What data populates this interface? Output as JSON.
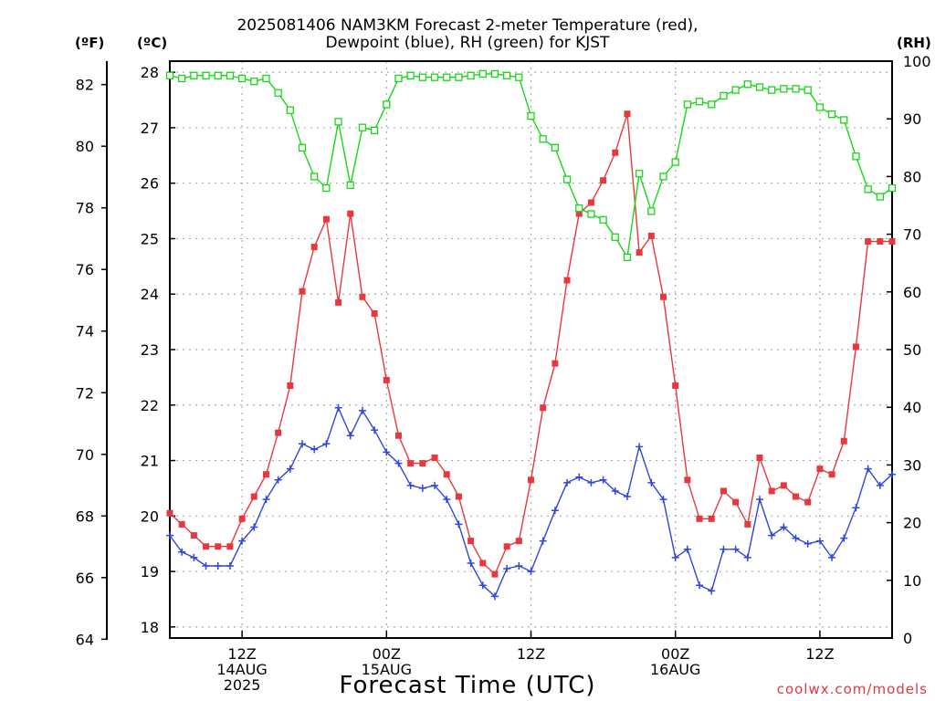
{
  "title": {
    "line1": "2025081406 NAM3KM Forecast 2-meter Temperature (red),",
    "line2": "Dewpoint (blue), RH (green) for KJST"
  },
  "units": {
    "f": "(ºF)",
    "c": "(ºC)",
    "rh": "(RH)"
  },
  "xlabel": "Forecast Time (UTC)",
  "credit": "coolwx.com/models",
  "colors": {
    "temp": "#e8383d",
    "dewpoint": "#2f46e0",
    "rh": "#16d816",
    "grid": "#a9a9a9"
  },
  "chart_data": {
    "type": "line",
    "x_unit": "hours after 2025-08-14 06Z",
    "x_ticks": [
      {
        "h": 6,
        "labels": [
          "12Z",
          "14AUG",
          "2025"
        ]
      },
      {
        "h": 18,
        "labels": [
          "00Z",
          "15AUG"
        ]
      },
      {
        "h": 30,
        "labels": [
          "12Z"
        ]
      },
      {
        "h": 42,
        "labels": [
          "00Z",
          "16AUG"
        ]
      },
      {
        "h": 54,
        "labels": [
          "12Z"
        ]
      }
    ],
    "x_range": [
      0,
      60
    ],
    "y_left_c": {
      "range": [
        17.8,
        28.2
      ],
      "ticks": [
        18,
        19,
        20,
        21,
        22,
        23,
        24,
        25,
        26,
        27,
        28
      ]
    },
    "y_left_f": {
      "ticks": [
        64,
        66,
        68,
        70,
        72,
        74,
        76,
        78,
        80,
        82
      ]
    },
    "y_right_rh": {
      "range": [
        0,
        100
      ],
      "ticks": [
        0,
        10,
        20,
        30,
        40,
        50,
        60,
        70,
        80,
        90,
        100
      ]
    },
    "grid": true,
    "series": [
      {
        "name": "Temperature",
        "axis": "c",
        "marker": "filled-square",
        "color": "#e8383d",
        "x": [
          0,
          1,
          2,
          3,
          4,
          5,
          6,
          7,
          8,
          9,
          10,
          11,
          12,
          13,
          14,
          15,
          16,
          17,
          18,
          19,
          20,
          21,
          22,
          23,
          24,
          25,
          26,
          27,
          28,
          29,
          30,
          31,
          32,
          33,
          34,
          35,
          36,
          37,
          38,
          39,
          40,
          41,
          42,
          43,
          44,
          45,
          46,
          47,
          48,
          49,
          50,
          51,
          52,
          53,
          54,
          55,
          56,
          57,
          58,
          59,
          60
        ],
        "values": [
          20.05,
          19.85,
          19.65,
          19.45,
          19.45,
          19.45,
          19.95,
          20.35,
          20.75,
          21.5,
          22.35,
          24.05,
          24.85,
          25.35,
          23.85,
          25.45,
          23.95,
          23.65,
          22.45,
          21.45,
          20.95,
          20.95,
          21.05,
          20.75,
          20.35,
          19.55,
          19.15,
          18.95,
          19.45,
          19.55,
          20.65,
          21.95,
          22.75,
          24.25,
          25.45,
          25.65,
          26.05,
          26.55,
          27.25,
          24.75,
          25.05,
          23.95,
          22.35,
          20.65,
          19.95,
          19.95,
          20.45,
          20.25,
          19.85,
          21.05,
          20.45,
          20.55,
          20.35,
          20.25,
          20.85,
          20.75,
          21.35,
          23.05,
          24.95,
          24.95,
          24.95
        ]
      },
      {
        "name": "Dewpoint",
        "axis": "c",
        "marker": "plus",
        "color": "#2f46e0",
        "x": [
          0,
          1,
          2,
          3,
          4,
          5,
          6,
          7,
          8,
          9,
          10,
          11,
          12,
          13,
          14,
          15,
          16,
          17,
          18,
          19,
          20,
          21,
          22,
          23,
          24,
          25,
          26,
          27,
          28,
          29,
          30,
          31,
          32,
          33,
          34,
          35,
          36,
          37,
          38,
          39,
          40,
          41,
          42,
          43,
          44,
          45,
          46,
          47,
          48,
          49,
          50,
          51,
          52,
          53,
          54,
          55,
          56,
          57,
          58,
          59,
          60
        ],
        "values": [
          19.65,
          19.35,
          19.25,
          19.1,
          19.1,
          19.1,
          19.55,
          19.8,
          20.3,
          20.65,
          20.85,
          21.3,
          21.2,
          21.3,
          21.95,
          21.45,
          21.9,
          21.55,
          21.15,
          20.95,
          20.55,
          20.5,
          20.55,
          20.3,
          19.85,
          19.15,
          18.75,
          18.55,
          19.05,
          19.1,
          19.0,
          19.55,
          20.1,
          20.6,
          20.7,
          20.6,
          20.65,
          20.45,
          20.35,
          21.25,
          20.6,
          20.3,
          19.25,
          19.4,
          18.75,
          18.65,
          19.4,
          19.4,
          19.25,
          20.3,
          19.65,
          19.8,
          19.6,
          19.5,
          19.55,
          19.25,
          19.6,
          20.15,
          20.85,
          20.55,
          20.75
        ]
      },
      {
        "name": "RH",
        "axis": "rh",
        "marker": "open-square",
        "color": "#16d816",
        "x": [
          0,
          1,
          2,
          3,
          4,
          5,
          6,
          7,
          8,
          9,
          10,
          11,
          12,
          13,
          14,
          15,
          16,
          17,
          18,
          19,
          20,
          21,
          22,
          23,
          24,
          25,
          26,
          27,
          28,
          29,
          30,
          31,
          32,
          33,
          34,
          35,
          36,
          37,
          38,
          39,
          40,
          41,
          42,
          43,
          44,
          45,
          46,
          47,
          48,
          49,
          50,
          51,
          52,
          53,
          54,
          55,
          56,
          57,
          58,
          59,
          60
        ],
        "values": [
          97.5,
          97,
          97.5,
          97.5,
          97.5,
          97.5,
          97,
          96.5,
          97,
          94.5,
          91.5,
          85,
          80,
          78,
          89.5,
          78.5,
          88.5,
          88,
          92.5,
          97,
          97.5,
          97.2,
          97.2,
          97.2,
          97.2,
          97.5,
          97.8,
          97.8,
          97.5,
          97.2,
          90.5,
          86.5,
          85,
          79.5,
          74.5,
          73.5,
          72.5,
          69.5,
          66,
          80.5,
          74,
          80,
          82.5,
          92.5,
          93,
          92.5,
          94,
          95,
          96,
          95.5,
          95,
          95.2,
          95.2,
          95,
          92,
          90.8,
          89.8,
          83.5,
          77.8,
          76.5,
          78
        ]
      }
    ]
  }
}
